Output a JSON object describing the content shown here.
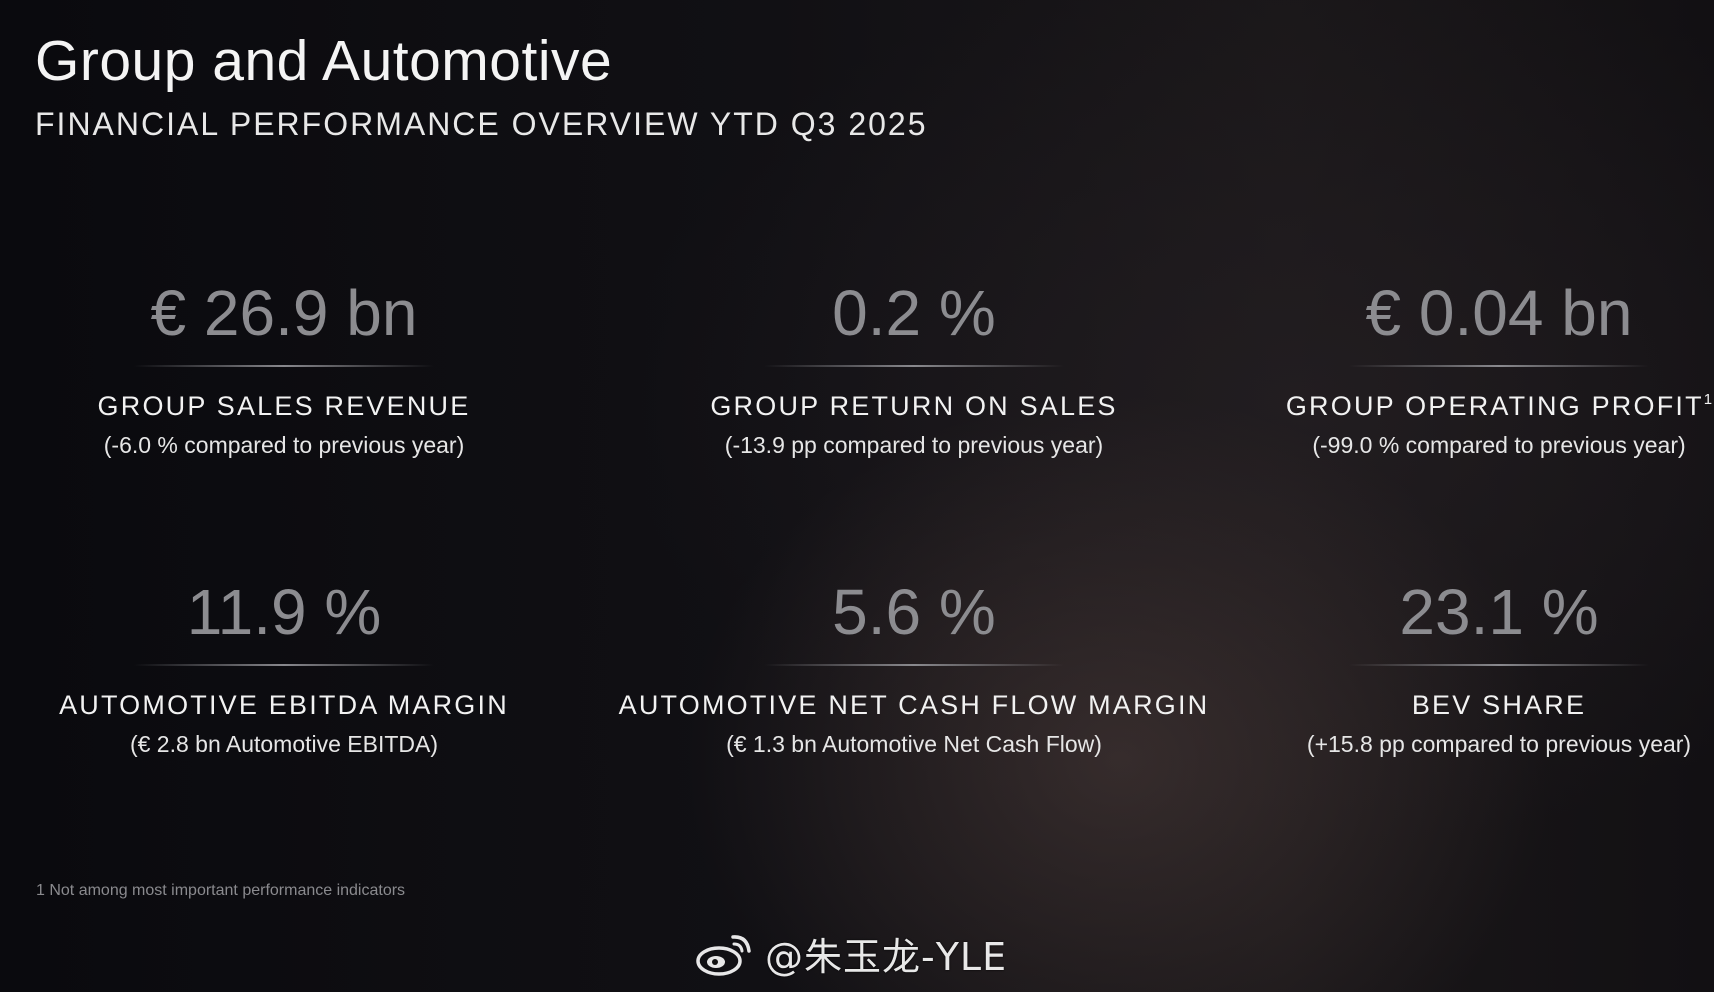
{
  "header": {
    "title": "Group and Automotive",
    "subtitle": "FINANCIAL PERFORMANCE OVERVIEW YTD Q3 2025"
  },
  "kpis": [
    {
      "value": "€ 26.9 bn",
      "label": "GROUP SALES REVENUE",
      "note": "(-6.0 % compared to previous year)"
    },
    {
      "value": "0.2 %",
      "label": "GROUP RETURN ON SALES",
      "note": "(-13.9 pp compared to previous year)"
    },
    {
      "value": "€ 0.04 bn",
      "label": "GROUP OPERATING PROFIT",
      "footnote_marker": "1",
      "note": "(-99.0 % compared to previous year)"
    },
    {
      "value": "11.9 %",
      "label": "AUTOMOTIVE EBITDA MARGIN",
      "note": "(€ 2.8 bn Automotive EBITDA)"
    },
    {
      "value": "5.6 %",
      "label": "AUTOMOTIVE NET CASH FLOW MARGIN",
      "note": "(€ 1.3 bn Automotive Net Cash Flow)"
    },
    {
      "value": "23.1 %",
      "label": "BEV SHARE",
      "note": "(+15.8 pp compared to previous year)"
    }
  ],
  "footnote": "1 Not among most important performance indicators",
  "watermark": {
    "handle": "@朱玉龙-YLE",
    "icon": "weibo-logo-icon"
  }
}
